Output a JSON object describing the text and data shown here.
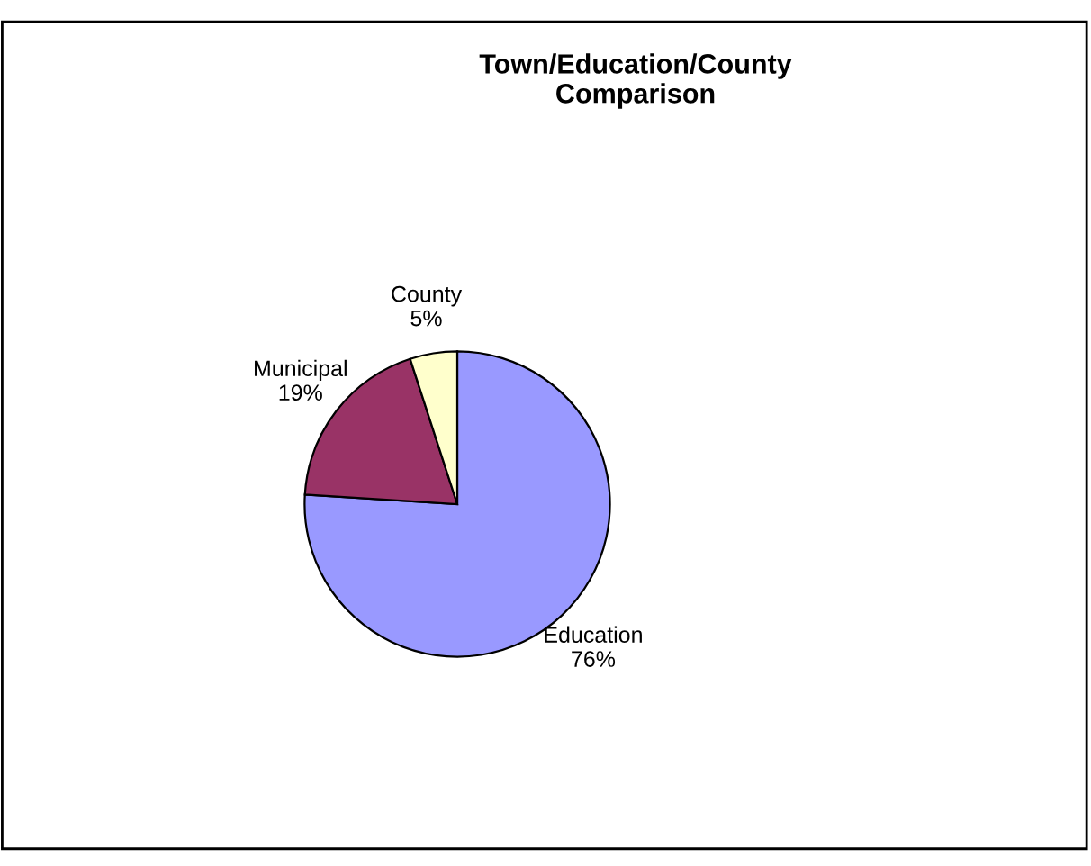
{
  "chart_data": {
    "type": "pie",
    "title": "Town/Education/County\nComparison",
    "categories": [
      "Education",
      "Municipal",
      "County"
    ],
    "values": [
      76,
      19,
      5
    ],
    "colors": [
      "#9999ff",
      "#993366",
      "#ffffcc"
    ],
    "value_labels": [
      "76%",
      "19%",
      "5%"
    ]
  }
}
